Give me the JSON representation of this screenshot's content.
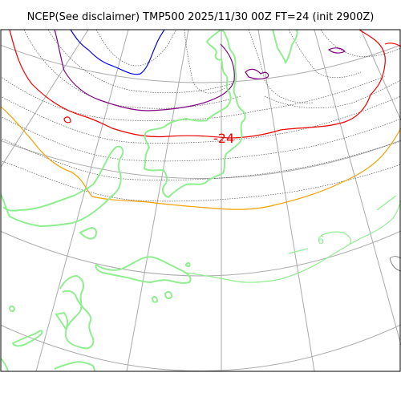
{
  "title": "NCEP(See disclaimer) TMP500 2025/11/30 00Z FT=24 (init 2900Z)",
  "map_labels": {
    "contour_label": "-24",
    "coast_label": "6"
  },
  "colors": {
    "frame": "#000000",
    "graticule": "#aaaaaa",
    "coast": "#90ee90",
    "isotherm_minor": "#555555",
    "isotherm_blue": "#0000ee",
    "isotherm_purple": "#800080",
    "isotherm_red": "#ee0000",
    "isotherm_orange": "#f5a000"
  }
}
